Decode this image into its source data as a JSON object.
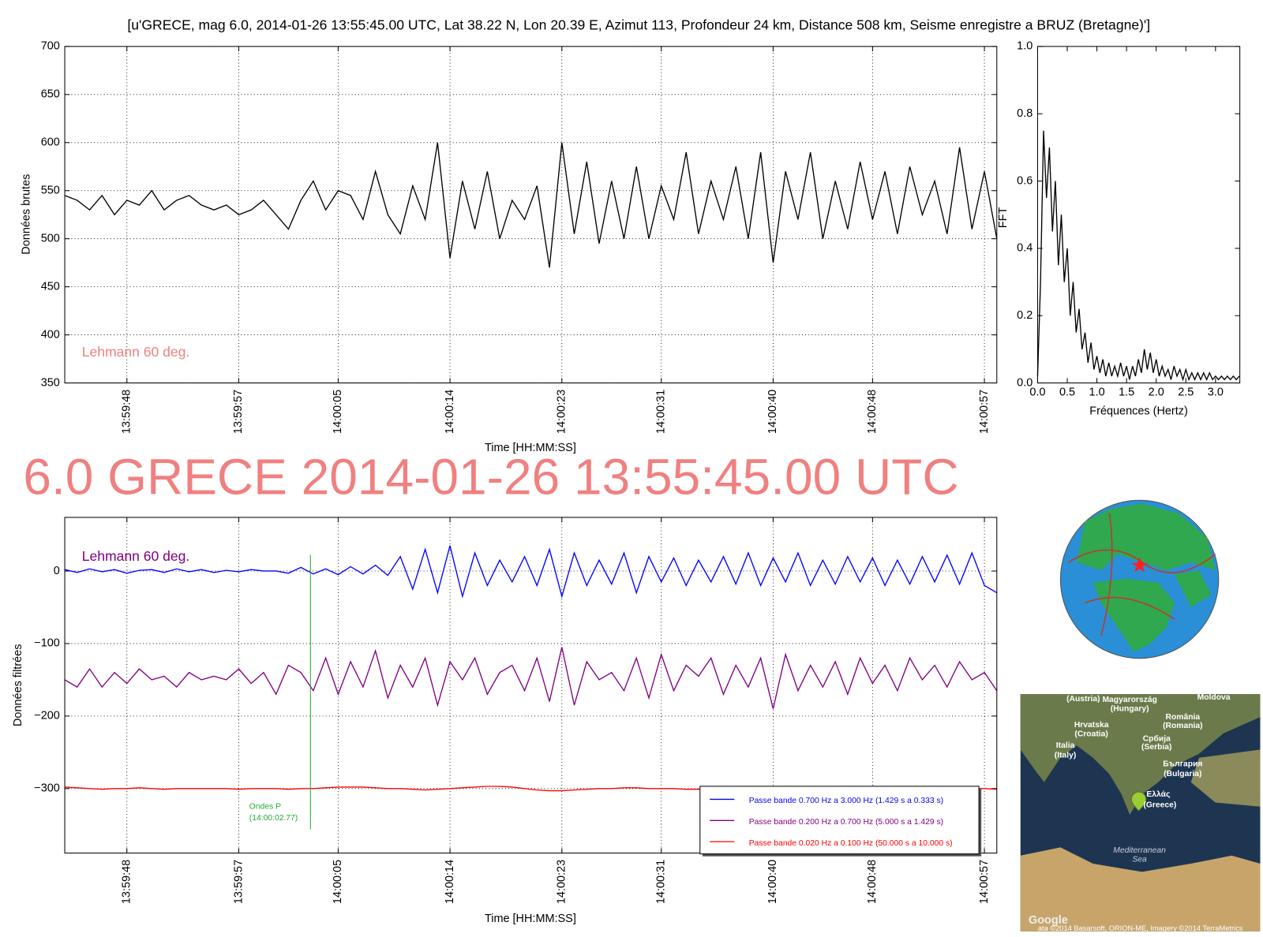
{
  "chart_data": [
    {
      "type": "line",
      "title": "[u'GRECE, mag 6.0, 2014-01-26 13:55:45.00 UTC, Lat 38.22 N, Lon 20.39 E, Azimut 113, Profondeur 24 km, Distance 508 km, Seisme enregistre a BRUZ (Bretagne)']",
      "xlabel": "Time [HH:MM:SS]",
      "ylabel": "Données brutes",
      "annotation": "Lehmann 60 deg.",
      "x": [
        "13:59:43",
        "13:59:44",
        "13:59:45",
        "13:59:46",
        "13:59:47",
        "13:59:48",
        "13:59:49",
        "13:59:50",
        "13:59:51",
        "13:59:52",
        "13:59:53",
        "13:59:54",
        "13:59:55",
        "13:59:56",
        "13:59:57",
        "13:59:58",
        "13:59:59",
        "14:00:00",
        "14:00:01",
        "14:00:02",
        "14:00:03",
        "14:00:04",
        "14:00:05",
        "14:00:06",
        "14:00:07",
        "14:00:08",
        "14:00:09",
        "14:00:10",
        "14:00:11",
        "14:00:12",
        "14:00:13",
        "14:00:14",
        "14:00:15",
        "14:00:16",
        "14:00:17",
        "14:00:18",
        "14:00:19",
        "14:00:20",
        "14:00:21",
        "14:00:22",
        "14:00:23",
        "14:00:24",
        "14:00:25",
        "14:00:26",
        "14:00:27",
        "14:00:28",
        "14:00:29",
        "14:00:30",
        "14:00:31",
        "14:00:32",
        "14:00:33",
        "14:00:34",
        "14:00:35",
        "14:00:36",
        "14:00:37",
        "14:00:38",
        "14:00:39",
        "14:00:40",
        "14:00:41",
        "14:00:42",
        "14:00:43",
        "14:00:44",
        "14:00:45",
        "14:00:46",
        "14:00:47",
        "14:00:48",
        "14:00:49",
        "14:00:50",
        "14:00:51",
        "14:00:52",
        "14:00:53",
        "14:00:54",
        "14:00:55",
        "14:00:56",
        "14:00:57",
        "14:00:58"
      ],
      "series": [
        {
          "color": "#000000",
          "values": [
            545,
            540,
            530,
            545,
            525,
            540,
            535,
            550,
            530,
            540,
            545,
            535,
            530,
            535,
            525,
            530,
            540,
            525,
            510,
            540,
            560,
            530,
            550,
            545,
            520,
            570,
            525,
            505,
            555,
            520,
            600,
            480,
            560,
            510,
            570,
            500,
            540,
            520,
            555,
            470,
            600,
            505,
            580,
            495,
            560,
            500,
            575,
            500,
            555,
            520,
            590,
            505,
            560,
            520,
            575,
            500,
            590,
            475,
            570,
            520,
            590,
            500,
            560,
            510,
            580,
            520,
            570,
            505,
            575,
            525,
            560,
            505,
            595,
            510,
            570,
            500
          ]
        }
      ],
      "xlim": [
        "13:59:43",
        "14:00:58"
      ],
      "xticks": [
        "13:59:48",
        "13:59:57",
        "14:00:05",
        "14:00:14",
        "14:00:23",
        "14:00:31",
        "14:00:40",
        "14:00:48",
        "14:00:57"
      ],
      "ylim": [
        350,
        700
      ],
      "yticks": [
        350,
        400,
        450,
        500,
        550,
        600,
        650,
        700
      ],
      "grid": true,
      "xtick_rotation": 90
    },
    {
      "type": "line",
      "xlabel": "Fréquences (Hertz)",
      "ylabel": "FFT",
      "color": "#000000",
      "x": [
        0,
        0.05,
        0.1,
        0.15,
        0.2,
        0.25,
        0.3,
        0.35,
        0.4,
        0.45,
        0.5,
        0.55,
        0.6,
        0.65,
        0.7,
        0.75,
        0.8,
        0.85,
        0.9,
        0.95,
        1.0,
        1.05,
        1.1,
        1.15,
        1.2,
        1.25,
        1.3,
        1.35,
        1.4,
        1.45,
        1.5,
        1.55,
        1.6,
        1.65,
        1.7,
        1.75,
        1.8,
        1.85,
        1.9,
        1.95,
        2.0,
        2.05,
        2.1,
        2.15,
        2.2,
        2.25,
        2.3,
        2.35,
        2.4,
        2.45,
        2.5,
        2.55,
        2.6,
        2.65,
        2.7,
        2.75,
        2.8,
        2.85,
        2.9,
        2.95,
        3.0,
        3.05,
        3.1,
        3.15,
        3.2,
        3.25,
        3.3,
        3.35,
        3.4
      ],
      "values": [
        0.02,
        0.3,
        0.75,
        0.55,
        0.7,
        0.45,
        0.6,
        0.35,
        0.5,
        0.3,
        0.4,
        0.2,
        0.3,
        0.15,
        0.22,
        0.1,
        0.15,
        0.06,
        0.12,
        0.04,
        0.08,
        0.03,
        0.07,
        0.02,
        0.06,
        0.02,
        0.05,
        0.02,
        0.06,
        0.02,
        0.05,
        0.01,
        0.05,
        0.02,
        0.07,
        0.03,
        0.1,
        0.04,
        0.09,
        0.03,
        0.07,
        0.02,
        0.05,
        0.02,
        0.04,
        0.01,
        0.05,
        0.02,
        0.04,
        0.01,
        0.04,
        0.01,
        0.03,
        0.01,
        0.03,
        0.01,
        0.03,
        0.01,
        0.03,
        0.01,
        0.02,
        0.01,
        0.02,
        0.01,
        0.02,
        0.01,
        0.02,
        0.01,
        0.02
      ],
      "xlim": [
        0,
        3.41
      ],
      "xticks": [
        {
          "value": 0,
          "label": "0.0"
        },
        0.5,
        {
          "value": 1,
          "label": "1.0"
        },
        1.5,
        {
          "value": 2,
          "label": "2.0"
        },
        2.5,
        {
          "value": 3,
          "label": "3.0"
        }
      ],
      "ylim": [
        0,
        1
      ],
      "yticks": [
        {
          "value": 0,
          "label": "0.0"
        },
        0.2,
        0.4,
        0.6,
        0.8,
        {
          "value": 1,
          "label": "1.0"
        }
      ],
      "grid": false
    },
    {
      "type": "line",
      "title": "6.0 GRECE 2014-01-26 13:55:45.00 UTC",
      "xlabel": "Time [HH:MM:SS]",
      "ylabel": "Données filtrées",
      "annotation": "Lehmann 60 deg.",
      "p_wave": {
        "x": "14:00:02.77",
        "labels": [
          "Ondes P",
          "(14:00:02.77)"
        ]
      },
      "x": [
        "13:59:43",
        "13:59:44",
        "13:59:45",
        "13:59:46",
        "13:59:47",
        "13:59:48",
        "13:59:49",
        "13:59:50",
        "13:59:51",
        "13:59:52",
        "13:59:53",
        "13:59:54",
        "13:59:55",
        "13:59:56",
        "13:59:57",
        "13:59:58",
        "13:59:59",
        "14:00:00",
        "14:00:01",
        "14:00:02",
        "14:00:03",
        "14:00:04",
        "14:00:05",
        "14:00:06",
        "14:00:07",
        "14:00:08",
        "14:00:09",
        "14:00:10",
        "14:00:11",
        "14:00:12",
        "14:00:13",
        "14:00:14",
        "14:00:15",
        "14:00:16",
        "14:00:17",
        "14:00:18",
        "14:00:19",
        "14:00:20",
        "14:00:21",
        "14:00:22",
        "14:00:23",
        "14:00:24",
        "14:00:25",
        "14:00:26",
        "14:00:27",
        "14:00:28",
        "14:00:29",
        "14:00:30",
        "14:00:31",
        "14:00:32",
        "14:00:33",
        "14:00:34",
        "14:00:35",
        "14:00:36",
        "14:00:37",
        "14:00:38",
        "14:00:39",
        "14:00:40",
        "14:00:41",
        "14:00:42",
        "14:00:43",
        "14:00:44",
        "14:00:45",
        "14:00:46",
        "14:00:47",
        "14:00:48",
        "14:00:49",
        "14:00:50",
        "14:00:51",
        "14:00:52",
        "14:00:53",
        "14:00:54",
        "14:00:55",
        "14:00:56",
        "14:00:57",
        "14:00:58"
      ],
      "series": [
        {
          "name": "Passe bande 0.700 Hz a 3.000 Hz (1.429 s a 0.333 s)",
          "color": "#0000ff",
          "values": [
            2,
            -2,
            3,
            -1,
            2,
            -3,
            1,
            2,
            -2,
            3,
            -1,
            2,
            -2,
            1,
            -1,
            2,
            0,
            0,
            -3,
            5,
            -4,
            3,
            -5,
            6,
            -4,
            8,
            -6,
            20,
            -25,
            30,
            -30,
            35,
            -35,
            25,
            -20,
            15,
            -15,
            20,
            -20,
            30,
            -35,
            25,
            -20,
            15,
            -18,
            25,
            -30,
            20,
            -15,
            18,
            -20,
            15,
            -15,
            20,
            -18,
            25,
            -20,
            18,
            -15,
            25,
            -20,
            15,
            -18,
            20,
            -15,
            18,
            -20,
            15,
            -18,
            20,
            -15,
            22,
            -18,
            25,
            -20,
            -30
          ]
        },
        {
          "name": "Passe bande 0.200 Hz a 0.700 Hz (5.000 s a 1.429 s)",
          "color": "#800080",
          "values": [
            -150,
            -160,
            -135,
            -160,
            -140,
            -155,
            -135,
            -150,
            -145,
            -160,
            -140,
            -150,
            -145,
            -150,
            -135,
            -155,
            -140,
            -170,
            -130,
            -140,
            -165,
            -120,
            -170,
            -125,
            -160,
            -110,
            -175,
            -130,
            -160,
            -120,
            -185,
            -125,
            -150,
            -120,
            -170,
            -140,
            -130,
            -165,
            -120,
            -180,
            -105,
            -185,
            -125,
            -150,
            -140,
            -165,
            -120,
            -175,
            -115,
            -165,
            -130,
            -145,
            -120,
            -170,
            -130,
            -160,
            -120,
            -190,
            -115,
            -165,
            -130,
            -160,
            -125,
            -170,
            -120,
            -155,
            -130,
            -165,
            -120,
            -150,
            -130,
            -160,
            -125,
            -150,
            -140,
            -165
          ]
        },
        {
          "name": "Passe bande 0.020 Hz a 0.100 Hz (50.000 s a 10.000 s)",
          "color": "#ff0000",
          "values": [
            -298,
            -299,
            -300,
            -301,
            -300,
            -300,
            -299,
            -300,
            -301,
            -300,
            -300,
            -300,
            -300,
            -300,
            -301,
            -300,
            -300,
            -300,
            -301,
            -300,
            -300,
            -299,
            -298,
            -298,
            -298,
            -299,
            -300,
            -300,
            -301,
            -302,
            -301,
            -300,
            -299,
            -298,
            -297,
            -297,
            -298,
            -300,
            -302,
            -303,
            -303,
            -302,
            -301,
            -300,
            -300,
            -299,
            -299,
            -300,
            -300,
            -300,
            -301,
            -301,
            -300,
            -299,
            -298,
            -298,
            -299,
            -299,
            -298,
            -298,
            -299,
            -300,
            -300,
            -300,
            -301,
            -300,
            -300,
            -300,
            -299,
            -300,
            -300,
            -301,
            -300,
            -300,
            -300,
            -301
          ]
        }
      ],
      "xlim": [
        "13:59:43",
        "14:00:58"
      ],
      "xticks": [
        "13:59:48",
        "13:59:57",
        "14:00:05",
        "14:00:14",
        "14:00:23",
        "14:00:31",
        "14:00:40",
        "14:00:48",
        "14:00:57"
      ],
      "ylim": [
        -389,
        74
      ],
      "yticks": [
        {
          "value": -300,
          "label": "−300"
        },
        {
          "value": -200,
          "label": "−200"
        },
        {
          "value": -100,
          "label": "−100"
        },
        0
      ],
      "grid": true,
      "xtick_rotation": 90,
      "legend": "lower right"
    }
  ],
  "map": {
    "labels": [
      "(Austria)",
      "Magyarország",
      "(Hungary)",
      "Moldova",
      "România",
      "(Romania)",
      "Hrvatska",
      "(Croatia)",
      "Србија",
      "(Serbia)",
      "Italia",
      "(Italy)",
      "България",
      "(Bulgaria)",
      "Ελλάς",
      "(Greece)",
      "Mediterranean",
      "Sea",
      "Google",
      "ata ©2014 Basarsoft, ORION-ME, Imagery ©2014 TerraMetrics"
    ]
  }
}
